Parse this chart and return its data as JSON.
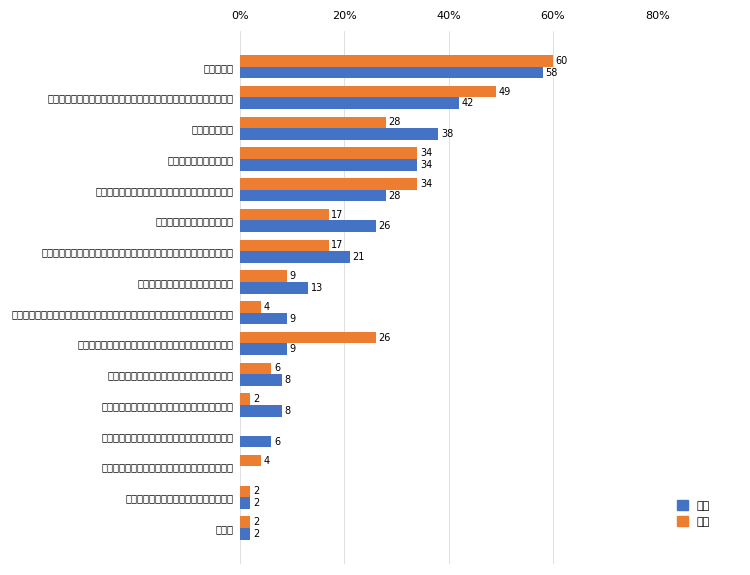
{
  "categories": [
    "面接が苦手",
    "内定を得られるか不安なので多くの企業にエントリーする必要がある",
    "筆記試験が苦手",
    "自己分析ができていない",
    "自分のスキルや能力等にニーズがあるか不安である",
    "エントリーシートが大変そう",
    "オンラインでの採用選考で自分の人柄や熱意を伝えられるか不安である",
    "インターンシップに参加していない",
    "オンラインでのインターンシップや企業説明会で企業や業界への理解を深めづらい",
    "卒業研究が進んでいないので、就職活動との両立が難しい",
    "円安・物価高の市況の影響で採用が減少しそう",
    "様々な就活サイトの適切な活用方法がわからない",
    "キャリア支援センターに相談しづらくなっている",
    "志望する企業で新卒採用が行われるか不安である",
    "オンライン環境が十分でなく不利になる",
    "その他"
  ],
  "bunkei": [
    58,
    42,
    38,
    34,
    28,
    26,
    21,
    13,
    9,
    9,
    8,
    8,
    6,
    0,
    2,
    2
  ],
  "rikei": [
    60,
    49,
    28,
    34,
    34,
    17,
    17,
    9,
    4,
    26,
    6,
    2,
    0,
    4,
    2,
    2
  ],
  "bunkei_color": "#4472C4",
  "rikei_color": "#ED7D31",
  "xlim": [
    0,
    80
  ],
  "xticks": [
    0,
    20,
    40,
    60,
    80
  ],
  "xticklabels": [
    "0%",
    "20%",
    "40%",
    "60%",
    "80%"
  ],
  "bar_height": 0.38,
  "legend_bunkei": "文系",
  "legend_rikei": "理系",
  "label_fontsize": 7.2,
  "tick_fontsize": 8,
  "value_fontsize": 7
}
